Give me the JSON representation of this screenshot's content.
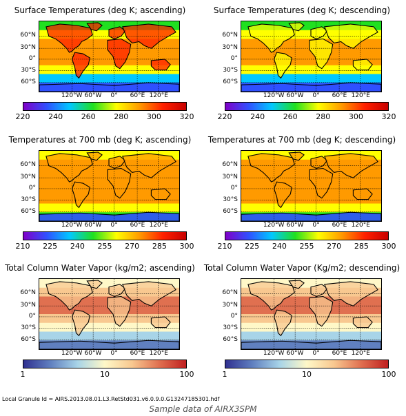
{
  "lat_labels": [
    "60°N",
    "30°N",
    "0°",
    "30°S",
    "60°S"
  ],
  "lon_labels": [
    "120°W",
    "60°W",
    "0°",
    "60°E",
    "120°E"
  ],
  "colormaps": {
    "rainbow": [
      "#8000c8",
      "#3050ff",
      "#00c8ff",
      "#20e020",
      "#ffff00",
      "#ff9a00",
      "#ff2000",
      "#c80000"
    ],
    "water": [
      "#303090",
      "#6080c0",
      "#a8d4e8",
      "#fff8c8",
      "#f8c890",
      "#e07050",
      "#c02020"
    ]
  },
  "panels": [
    {
      "title": "Surface Temperatures (deg K; ascending)",
      "colormap": "rainbow",
      "ticks": [
        "220",
        "240",
        "260",
        "280",
        "300",
        "320"
      ],
      "variable": "surface_temp",
      "pass": "ascending"
    },
    {
      "title": "Surface Temperatures (deg K; descending)",
      "colormap": "rainbow",
      "ticks": [
        "220",
        "240",
        "260",
        "280",
        "300",
        "320"
      ],
      "variable": "surface_temp",
      "pass": "descending"
    },
    {
      "title": "Temperatures at 700 mb (deg K; ascending)",
      "colormap": "rainbow",
      "ticks": [
        "210",
        "225",
        "240",
        "255",
        "270",
        "285",
        "300"
      ],
      "variable": "temp_700mb",
      "pass": "ascending"
    },
    {
      "title": "Temperatures at 700 mb (deg K; descending)",
      "colormap": "rainbow",
      "ticks": [
        "210",
        "225",
        "240",
        "255",
        "270",
        "285",
        "300"
      ],
      "variable": "temp_700mb",
      "pass": "descending"
    },
    {
      "title": "Total Column Water Vapor (kg/m2; ascending)",
      "colormap": "water",
      "ticks": [
        "1",
        "10",
        "100"
      ],
      "variable": "water_vapor",
      "pass": "ascending"
    },
    {
      "title": "Total Column Water Vapor (Kg/m2; descending)",
      "colormap": "water",
      "ticks": [
        "1",
        "10",
        "100"
      ],
      "variable": "water_vapor",
      "pass": "descending"
    }
  ],
  "granule_text": "Local Granule Id = AIRS.2013.08.01.L3.RetStd031.v6.0.9.0.G13247185301.hdf",
  "caption": "Sample data of AIRX3SPM"
}
